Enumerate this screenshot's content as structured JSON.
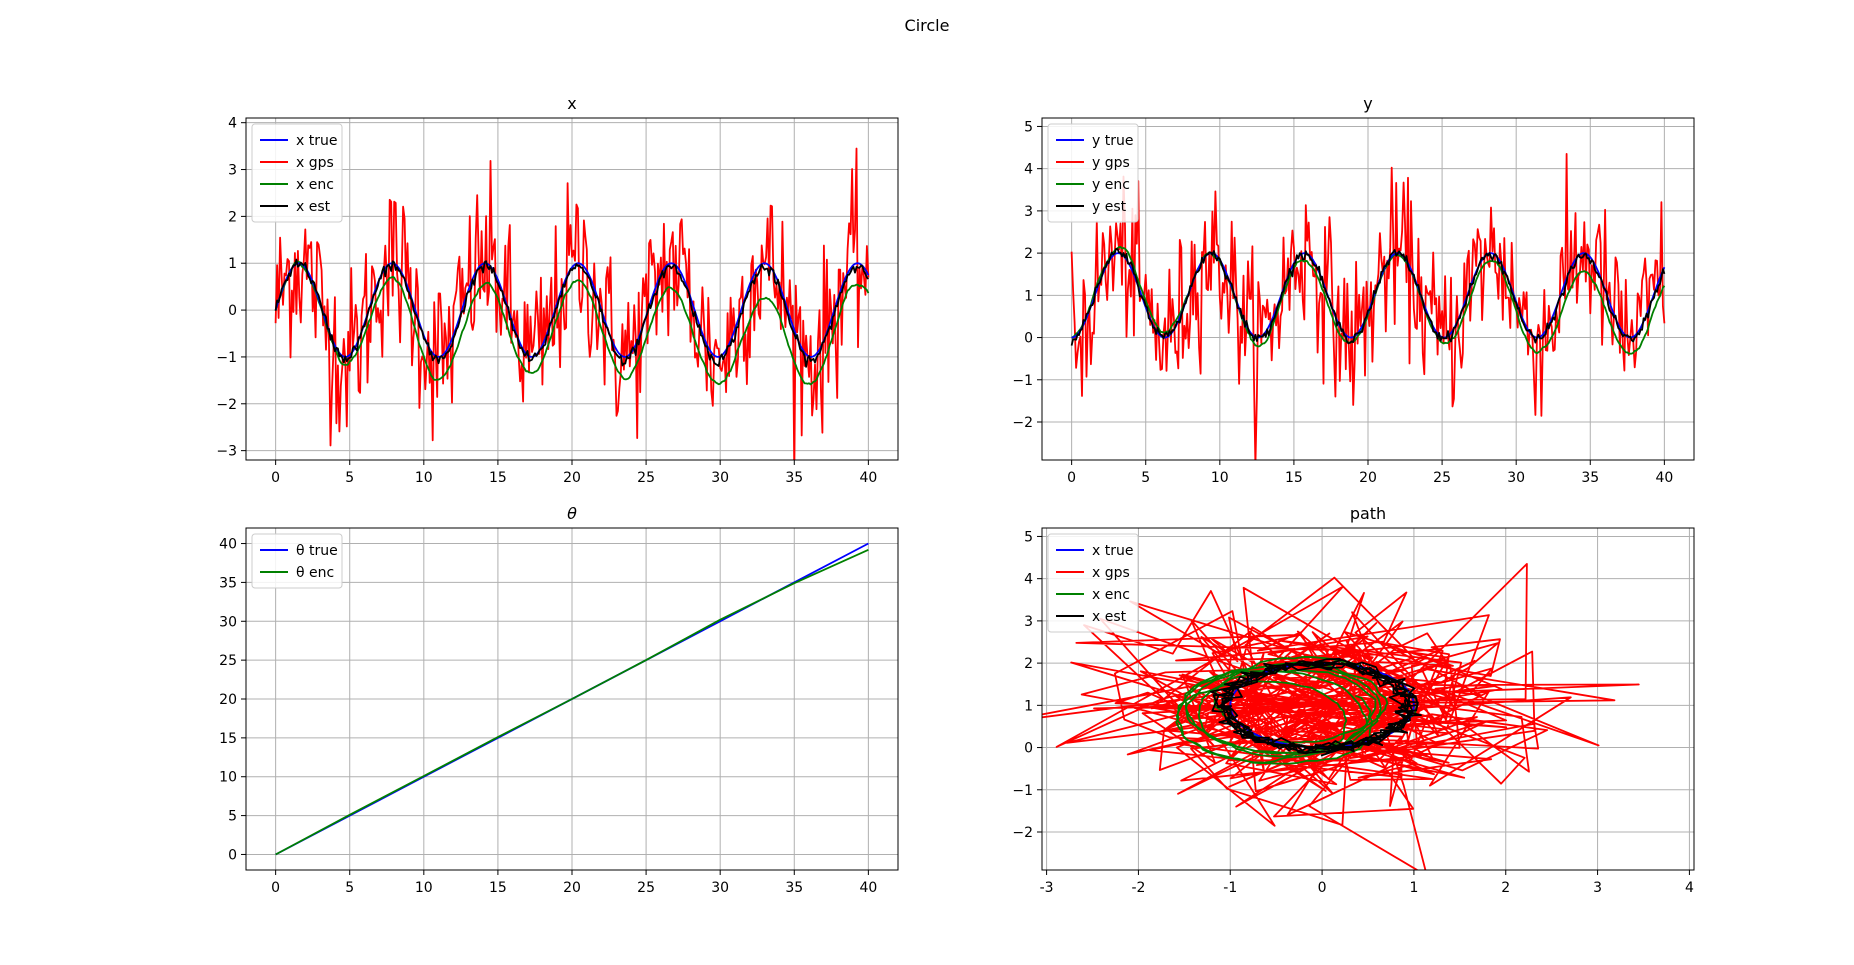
{
  "figure": {
    "suptitle": "Circle"
  },
  "colors": {
    "true": "#0000ff",
    "gps": "#ff0000",
    "enc": "#008000",
    "est": "#000000"
  },
  "chart_data": [
    {
      "id": "x",
      "type": "line",
      "title": "x",
      "xlim": [
        -2,
        42
      ],
      "ylim": [
        -3.2,
        4.1
      ],
      "xticks": [
        0,
        5,
        10,
        15,
        20,
        25,
        30,
        35,
        40
      ],
      "yticks": [
        -3,
        -2,
        -1,
        0,
        1,
        2,
        3,
        4
      ],
      "grid": true,
      "legend": "top-left",
      "series": [
        {
          "name": "x true",
          "color": "#0000ff",
          "kind": "true"
        },
        {
          "name": "x gps",
          "color": "#ff0000",
          "kind": "gps"
        },
        {
          "name": "x enc",
          "color": "#008000",
          "kind": "enc"
        },
        {
          "name": "x est",
          "color": "#000000",
          "kind": "est"
        }
      ]
    },
    {
      "id": "y",
      "type": "line",
      "title": "y",
      "xlim": [
        -2,
        42
      ],
      "ylim": [
        -2.9,
        5.2
      ],
      "xticks": [
        0,
        5,
        10,
        15,
        20,
        25,
        30,
        35,
        40
      ],
      "yticks": [
        -2,
        -1,
        0,
        1,
        2,
        3,
        4,
        5
      ],
      "grid": true,
      "legend": "top-left",
      "series": [
        {
          "name": "y true",
          "color": "#0000ff",
          "kind": "true"
        },
        {
          "name": "y gps",
          "color": "#ff0000",
          "kind": "gps"
        },
        {
          "name": "y enc",
          "color": "#008000",
          "kind": "enc"
        },
        {
          "name": "y est",
          "color": "#000000",
          "kind": "est"
        }
      ]
    },
    {
      "id": "theta",
      "type": "line",
      "title": "θ",
      "xlim": [
        -2,
        42
      ],
      "ylim": [
        -2,
        42
      ],
      "xticks": [
        0,
        5,
        10,
        15,
        20,
        25,
        30,
        35,
        40
      ],
      "yticks": [
        0,
        5,
        10,
        15,
        20,
        25,
        30,
        35,
        40
      ],
      "grid": true,
      "legend": "top-left",
      "series": [
        {
          "name": "θ true",
          "color": "#0000ff",
          "kind": "true",
          "x": [
            0,
            40
          ],
          "y": [
            0,
            40
          ]
        },
        {
          "name": "θ enc",
          "color": "#008000",
          "kind": "enc",
          "x": [
            0,
            5,
            10,
            15,
            20,
            25,
            30,
            35,
            40
          ],
          "y": [
            0,
            5.1,
            10.1,
            15.1,
            20.0,
            25.0,
            30.2,
            34.9,
            39.2
          ]
        }
      ]
    },
    {
      "id": "path",
      "type": "line",
      "title": "path",
      "xlim": [
        -3.05,
        4.05
      ],
      "ylim": [
        -2.9,
        5.2
      ],
      "xticks": [
        -3,
        -2,
        -1,
        0,
        1,
        2,
        3,
        4
      ],
      "yticks": [
        -2,
        -1,
        0,
        1,
        2,
        3,
        4,
        5
      ],
      "grid": true,
      "legend": "top-left",
      "series": [
        {
          "name": "x true",
          "color": "#0000ff",
          "kind": "true"
        },
        {
          "name": "x gps",
          "color": "#ff0000",
          "kind": "gps"
        },
        {
          "name": "x enc",
          "color": "#008000",
          "kind": "enc"
        },
        {
          "name": "x est",
          "color": "#000000",
          "kind": "est"
        }
      ]
    }
  ]
}
